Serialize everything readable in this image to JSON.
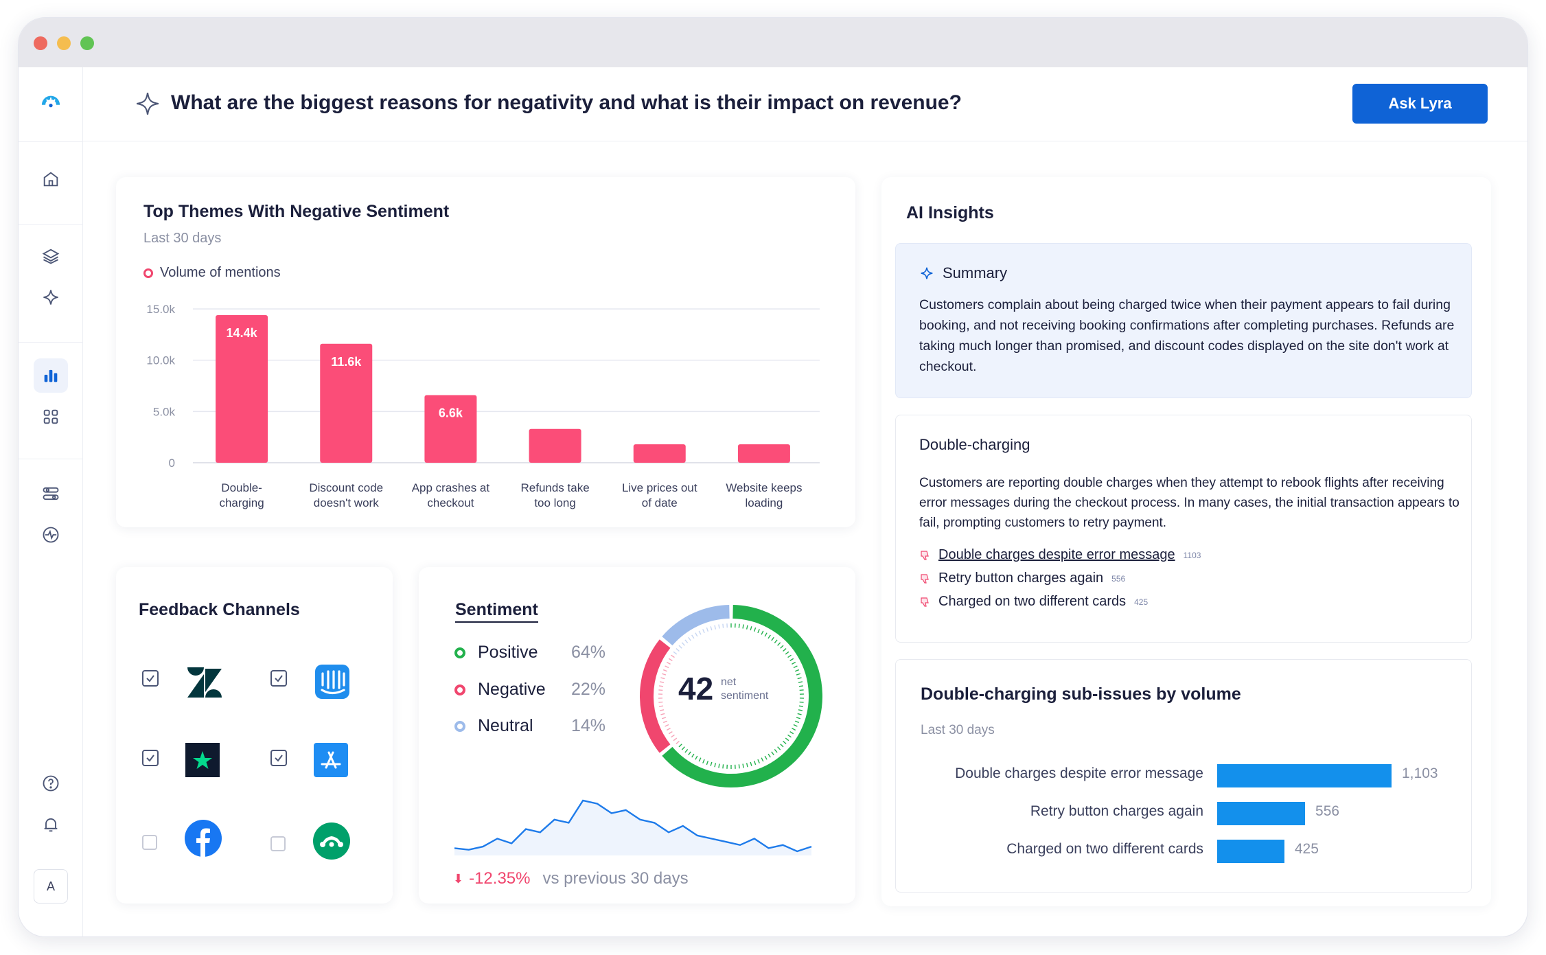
{
  "header": {
    "question": "What are the biggest reasons for negativity and what is their impact on revenue?",
    "ask_button": "Ask Lyra"
  },
  "sidebar": {
    "items": [
      "logo",
      "home",
      "layers",
      "sparkle",
      "analytics",
      "apps",
      "filters",
      "activity",
      "help",
      "notifications"
    ],
    "avatar_initial": "A"
  },
  "themes": {
    "title": "Top Themes With Negative Sentiment",
    "period": "Last 30 days",
    "legend": "Volume of mentions",
    "colors": {
      "bar": "#fb4d78",
      "grid": "#e6e8f0"
    }
  },
  "chart_data": {
    "type": "bar",
    "title": "Top Themes With Negative Sentiment",
    "categories": [
      [
        "Double-",
        "charging"
      ],
      [
        "Discount code",
        "doesn't work"
      ],
      [
        "App crashes at",
        "checkout"
      ],
      [
        "Refunds take",
        "too long"
      ],
      [
        "Live prices out",
        "of date"
      ],
      [
        "Website keeps",
        "loading"
      ]
    ],
    "values": [
      14400,
      11600,
      6600,
      3300,
      1800,
      1800
    ],
    "data_labels": [
      "14.4k",
      "11.6k",
      "6.6k",
      "",
      "",
      ""
    ],
    "yticks": [
      0,
      5000,
      10000,
      15000
    ],
    "ytick_labels": [
      "0",
      "5.0k",
      "10.0k",
      "15.0k"
    ],
    "ylim": [
      0,
      15000
    ],
    "series_name": "Volume of mentions"
  },
  "feedback": {
    "title": "Feedback Channels",
    "channels": [
      {
        "name": "Zendesk",
        "checked": true
      },
      {
        "name": "Intercom",
        "checked": true
      },
      {
        "name": "Trustpilot",
        "checked": true
      },
      {
        "name": "App Store",
        "checked": true
      },
      {
        "name": "Facebook",
        "checked": false
      },
      {
        "name": "SurveyMonkey",
        "checked": false
      }
    ]
  },
  "sentiment": {
    "title": "Sentiment",
    "rows": [
      {
        "label": "Positive",
        "pct": "64%",
        "value": 64,
        "color": "#22b14c"
      },
      {
        "label": "Negative",
        "pct": "22%",
        "value": 22,
        "color": "#f0466e"
      },
      {
        "label": "Neutral",
        "pct": "14%",
        "value": 14,
        "color": "#9dbbea"
      }
    ],
    "net_value": "42",
    "net_label_1": "net",
    "net_label_2": "sentiment",
    "change": "-12.35%",
    "change_caption": "vs previous 30 days",
    "trend": [
      12,
      11,
      13,
      18,
      15,
      24,
      22,
      30,
      28,
      42,
      40,
      34,
      36,
      30,
      28,
      22,
      26,
      20,
      18,
      16,
      14,
      18,
      12,
      14,
      10,
      13
    ]
  },
  "insights": {
    "title": "AI Insights",
    "summary_label": "Summary",
    "summary_text": "Customers complain about being charged twice when their payment appears to fail during booking, and not receiving booking confirmations after completing purchases. Refunds are taking much longer than promised, and discount codes displayed on the site don't work at checkout.",
    "dc_label": "Double-charging",
    "dc_text": "Customers are reporting double charges when they attempt to rebook flights after receiving error messages during the checkout process. In many cases, the initial transaction appears to fail, prompting customers to retry payment.",
    "issues": [
      {
        "label": "Double charges despite error message",
        "count": "1103"
      },
      {
        "label": "Retry button charges again",
        "count": "556"
      },
      {
        "label": "Charged on two different cards",
        "count": "425"
      }
    ],
    "sub_title": "Double-charging sub-issues by volume",
    "sub_period": "Last 30 days",
    "sub_bars": [
      {
        "label": "Double charges despite error message",
        "value": 1103,
        "display": "1,103"
      },
      {
        "label": "Retry button charges again",
        "value": 556,
        "display": "556"
      },
      {
        "label": "Charged on two different cards",
        "value": 425,
        "display": "425"
      }
    ]
  }
}
